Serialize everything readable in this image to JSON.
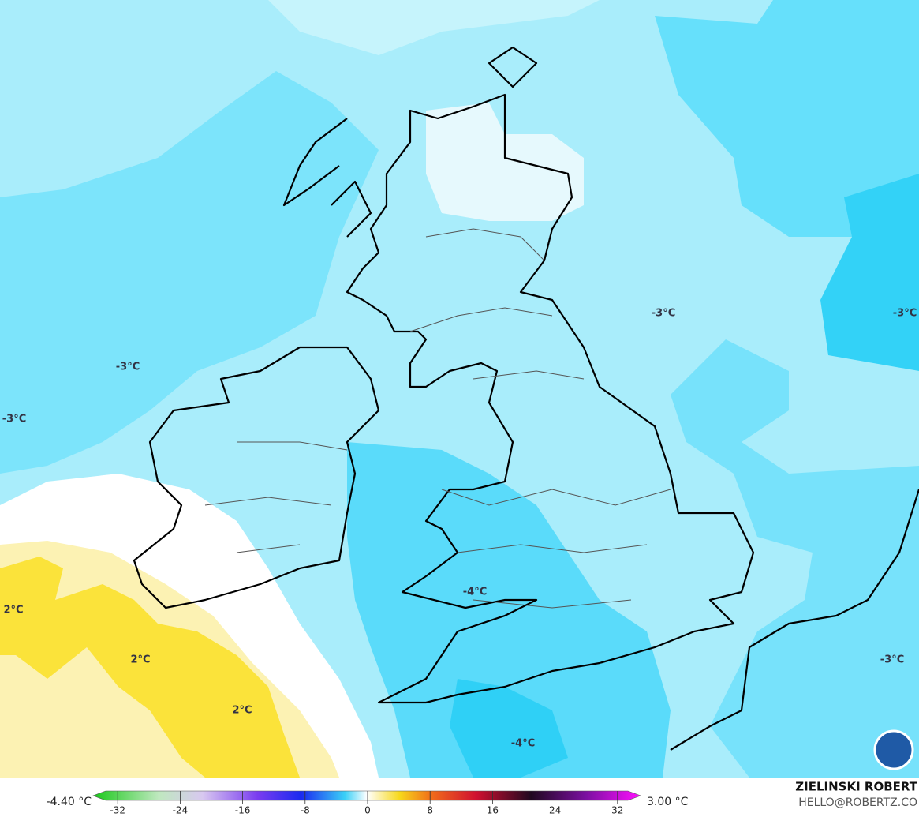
{
  "map": {
    "contour_labels": [
      "-3°C",
      "-3°C",
      "-3°C",
      "-3°C",
      "-3°C",
      "2°C",
      "2°C",
      "2°C",
      "-4°C",
      "-4°C"
    ],
    "colorbar": {
      "min_label": "-4.40 °C",
      "max_label": "3.00 °C",
      "ticks": [
        -32,
        -24,
        -16,
        -8,
        0,
        8,
        16,
        24,
        32
      ]
    },
    "credit": {
      "name": "ZIELINSKI ROBERT",
      "contact": "HELLO@ROBERTZ.CO"
    }
  }
}
